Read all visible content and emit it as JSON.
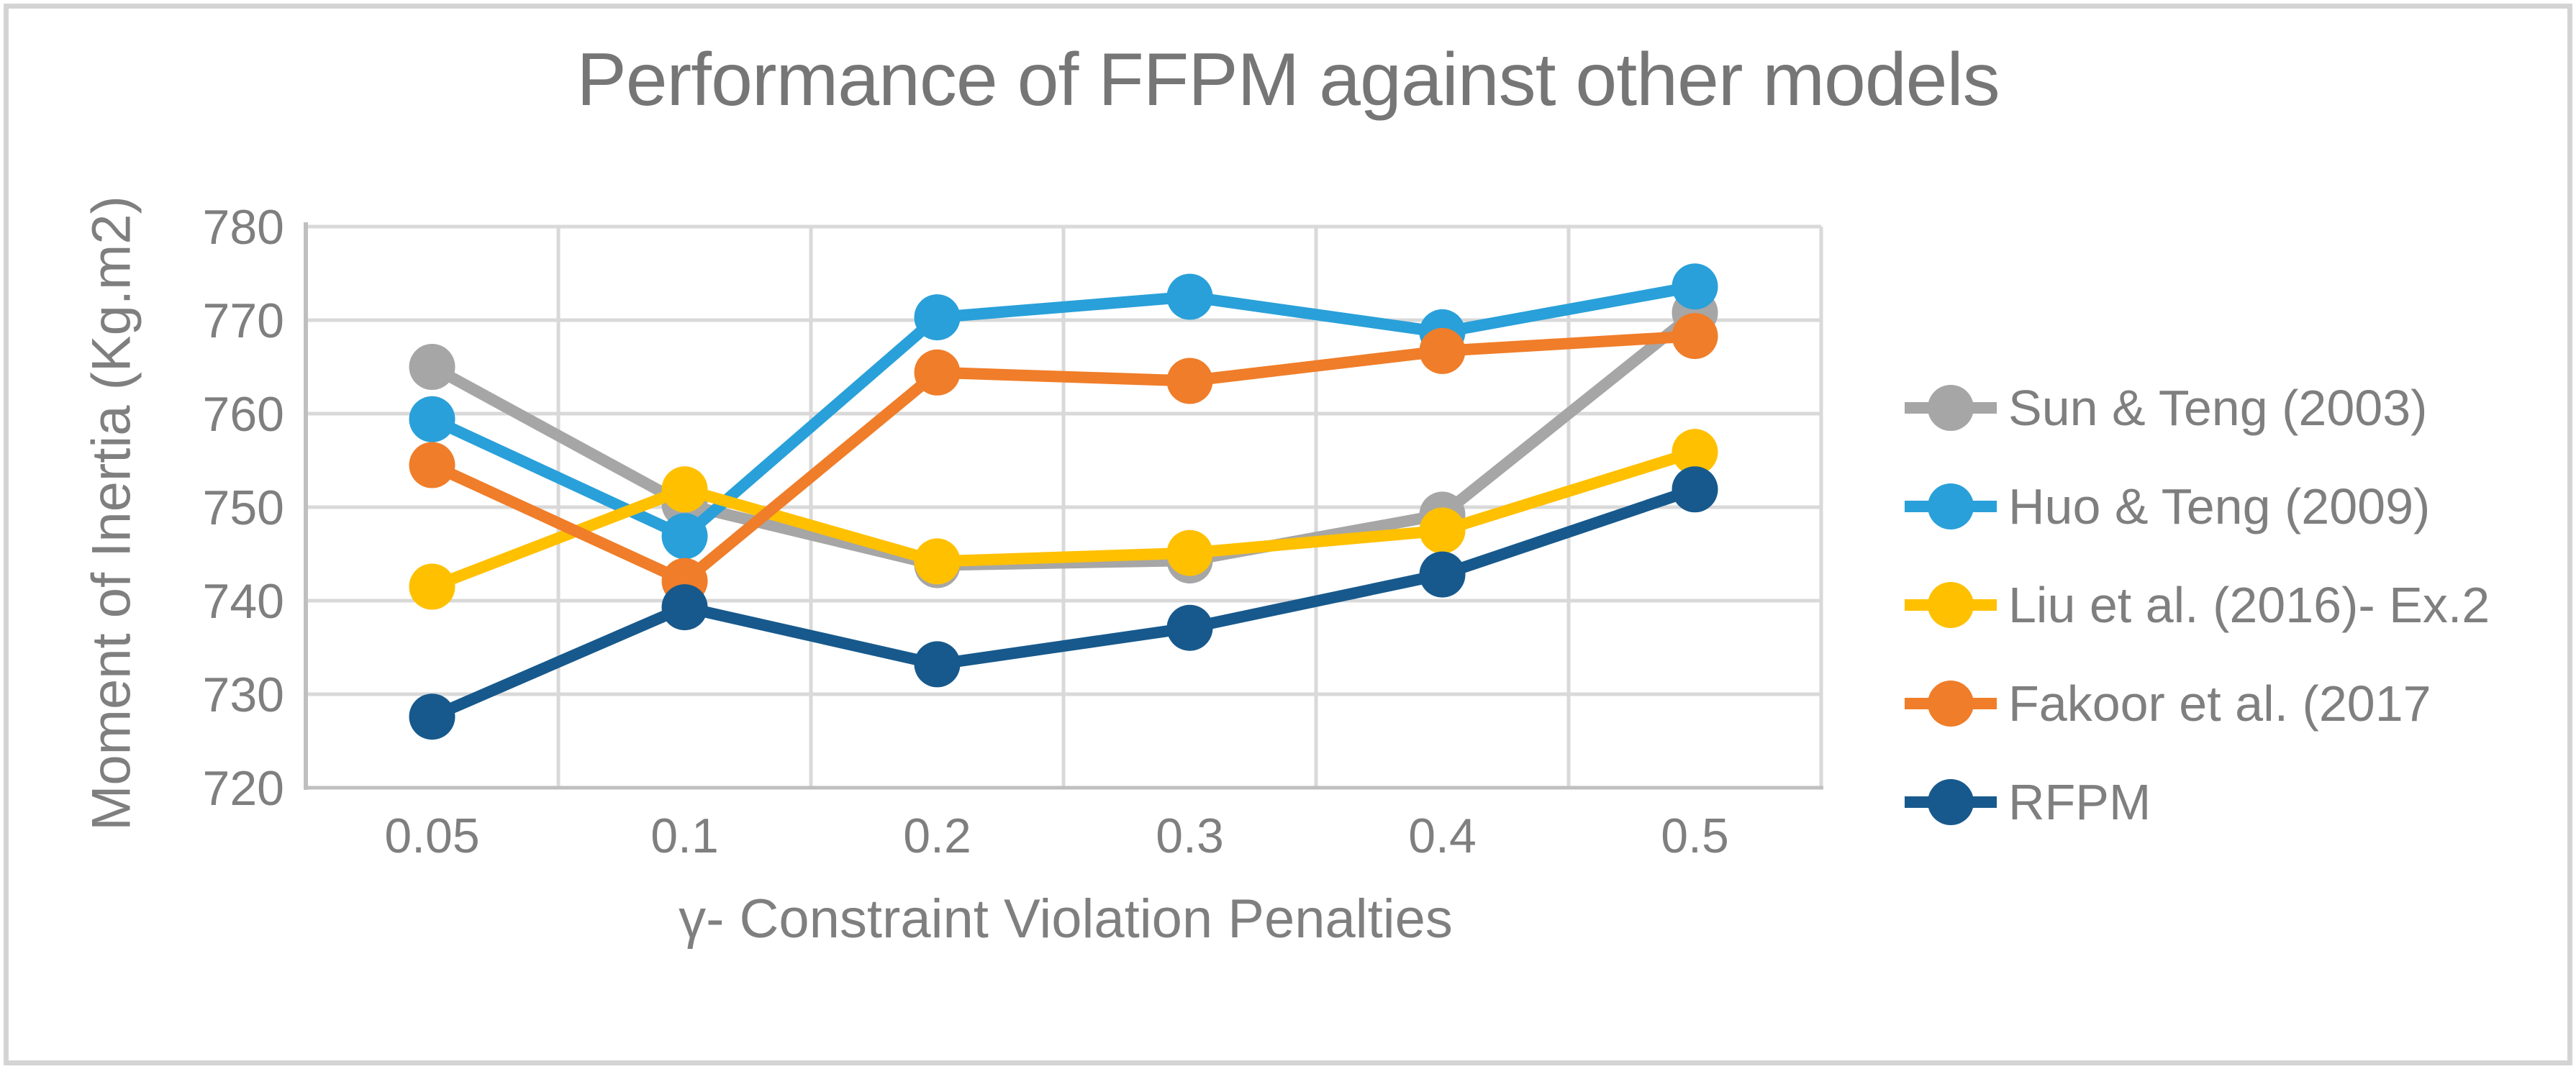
{
  "chart_data": {
    "type": "line",
    "title": "Performance of FFPM against other models",
    "xlabel": "γ- Constraint Violation Penalties",
    "ylabel": "Moment of Inertia (Kg.m2)",
    "categories": [
      "0.05",
      "0.1",
      "0.2",
      "0.3",
      "0.4",
      "0.5"
    ],
    "ylim": [
      720,
      780
    ],
    "yticks": [
      720,
      730,
      740,
      750,
      760,
      770,
      780
    ],
    "grid": true,
    "legend_position": "right",
    "series": [
      {
        "name": "Sun & Teng (2003)",
        "color": "#A6A6A6",
        "values": [
          765.0,
          750.3,
          743.8,
          744.3,
          749.2,
          770.8
        ]
      },
      {
        "name": "Huo & Teng (2009)",
        "color": "#29A0D9",
        "values": [
          759.4,
          746.9,
          770.3,
          772.5,
          768.7,
          773.6
        ]
      },
      {
        "name": "Liu et al. (2016)- Ex.2",
        "color": "#FFC000",
        "values": [
          741.5,
          751.9,
          744.2,
          745.1,
          747.5,
          755.9
        ]
      },
      {
        "name": "Fakoor et al. (2017",
        "color": "#F07D29",
        "values": [
          754.5,
          742.1,
          764.4,
          763.5,
          766.7,
          768.3
        ]
      },
      {
        "name": "RFPM",
        "color": "#17598C",
        "values": [
          727.6,
          739.3,
          733.2,
          737.1,
          742.8,
          751.9
        ]
      }
    ],
    "colors": {
      "gridline": "#D9D9D9",
      "axis": "#BFBFBF",
      "tick_text": "#7F7F7F",
      "title_text": "#767676"
    }
  }
}
